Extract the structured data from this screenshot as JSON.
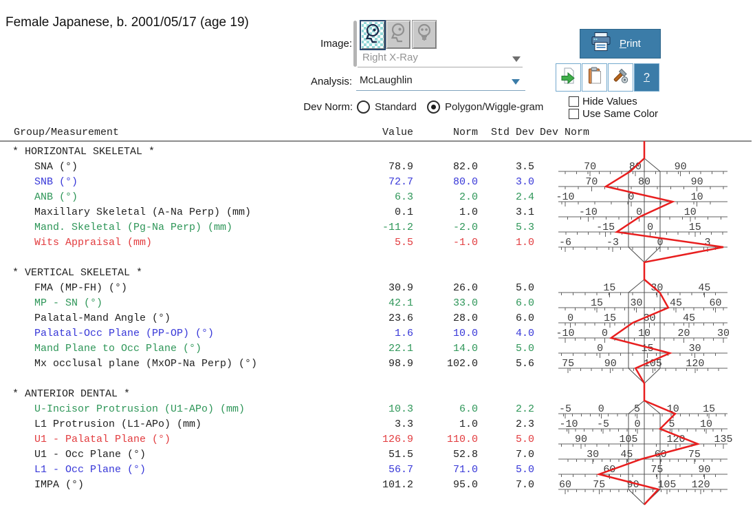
{
  "patient": {
    "summary": "Female Japanese, b. 2001/05/17 (age 19)"
  },
  "controls": {
    "image_label": "Image:",
    "image_value": "Right X-Ray",
    "analysis_label": "Analysis:",
    "analysis_value": "McLaughlin",
    "devnorm_label": "Dev Norm:",
    "radio_standard": "Standard",
    "radio_polygon": "Polygon/Wiggle-gram",
    "selected_radio": "Polygon/Wiggle-gram",
    "print_label": "Print",
    "help_label": "?",
    "hide_values_label": "Hide Values",
    "use_same_color_label": "Use Same Color",
    "hide_values_checked": false,
    "use_same_color_checked": false
  },
  "columns": {
    "group": "Group/Measurement",
    "value": "Value",
    "norm": "Norm",
    "std_dev": "Std Dev",
    "dev_norm": "Dev Norm"
  },
  "colors": {
    "black": "#1f1f1f",
    "blue": "#3737d8",
    "green": "#2e9658",
    "red": "#e23b3e",
    "accent_blue": "#3b7ca8",
    "wiggle_red": "#e81e1e",
    "polygon_line": "#4d4d4d",
    "axis_line": "#5f5f5f",
    "tick_label": "#3c3c3c"
  },
  "chart_data": {
    "type": "wiggle-gram",
    "note": "Each row axis is centered on its norm; polygon sides mark ±1 std dev.",
    "sections": [
      {
        "title": "* HORIZONTAL SKELETAL *",
        "rows": [
          {
            "label": "SNA (°)",
            "color": "black",
            "value": 78.9,
            "norm": 82.0,
            "sd": 3.5,
            "ticks": [
              70,
              80,
              90
            ]
          },
          {
            "label": "SNB (°)",
            "color": "blue",
            "value": 72.7,
            "norm": 80.0,
            "sd": 3.0,
            "ticks": [
              70,
              80,
              90
            ]
          },
          {
            "label": "ANB (°)",
            "color": "green",
            "value": 6.3,
            "norm": 2.0,
            "sd": 2.4,
            "ticks": [
              -10,
              0,
              10
            ]
          },
          {
            "label": "Maxillary Skeletal (A-Na Perp) (mm)",
            "color": "black",
            "value": 0.1,
            "norm": 1.0,
            "sd": 3.1,
            "ticks": [
              -10,
              0,
              10
            ]
          },
          {
            "label": "Mand. Skeletal (Pg-Na Perp) (mm)",
            "color": "green",
            "value": -11.2,
            "norm": -2.0,
            "sd": 5.3,
            "ticks": [
              -15,
              0,
              15
            ]
          },
          {
            "label": "Wits Appraisal (mm)",
            "color": "red",
            "value": 5.5,
            "norm": -1.0,
            "sd": 1.0,
            "ticks": [
              -6,
              -3,
              0,
              3
            ]
          }
        ]
      },
      {
        "title": "* VERTICAL SKELETAL *",
        "rows": [
          {
            "label": "FMA (MP-FH) (°)",
            "color": "black",
            "value": 30.9,
            "norm": 26.0,
            "sd": 5.0,
            "ticks": [
              15,
              30,
              45
            ]
          },
          {
            "label": "MP - SN (°)",
            "color": "green",
            "value": 42.1,
            "norm": 33.0,
            "sd": 6.0,
            "ticks": [
              15,
              30,
              45,
              60
            ]
          },
          {
            "label": "Palatal-Mand Angle (°)",
            "color": "black",
            "value": 23.6,
            "norm": 28.0,
            "sd": 6.0,
            "ticks": [
              0,
              15,
              30,
              45
            ]
          },
          {
            "label": "Palatal-Occ Plane (PP-OP) (°)",
            "color": "blue",
            "value": 1.6,
            "norm": 10.0,
            "sd": 4.0,
            "ticks": [
              -10,
              0,
              10,
              20,
              30
            ]
          },
          {
            "label": "Mand Plane to Occ Plane (°)",
            "color": "green",
            "value": 22.1,
            "norm": 14.0,
            "sd": 5.0,
            "ticks": [
              0,
              15,
              30
            ]
          },
          {
            "label": "Mx occlusal plane (MxOP-Na Perp) (°)",
            "color": "black",
            "value": 98.9,
            "norm": 102.0,
            "sd": 5.6,
            "ticks": [
              75,
              90,
              105,
              120
            ]
          }
        ]
      },
      {
        "title": "* ANTERIOR DENTAL *",
        "rows": [
          {
            "label": "U-Incisor Protrusion (U1-APo) (mm)",
            "color": "green",
            "value": 10.3,
            "norm": 6.0,
            "sd": 2.2,
            "ticks": [
              -5,
              0,
              5,
              10,
              15
            ]
          },
          {
            "label": "L1 Protrusion (L1-APo) (mm)",
            "color": "black",
            "value": 3.3,
            "norm": 1.0,
            "sd": 2.3,
            "ticks": [
              -10,
              -5,
              0,
              5,
              10
            ]
          },
          {
            "label": "U1 - Palatal Plane (°)",
            "color": "red",
            "value": 126.9,
            "norm": 110.0,
            "sd": 5.0,
            "ticks": [
              90,
              105,
              120,
              135
            ]
          },
          {
            "label": "U1 - Occ Plane (°)",
            "color": "black",
            "value": 51.5,
            "norm": 52.8,
            "sd": 7.0,
            "ticks": [
              30,
              45,
              60,
              75
            ]
          },
          {
            "label": "L1 - Occ Plane (°)",
            "color": "blue",
            "value": 56.7,
            "norm": 71.0,
            "sd": 5.0,
            "ticks": [
              60,
              75,
              90
            ]
          },
          {
            "label": "IMPA (°)",
            "color": "black",
            "value": 101.2,
            "norm": 95.0,
            "sd": 7.0,
            "ticks": [
              60,
              75,
              90,
              105,
              120
            ]
          }
        ]
      }
    ]
  }
}
